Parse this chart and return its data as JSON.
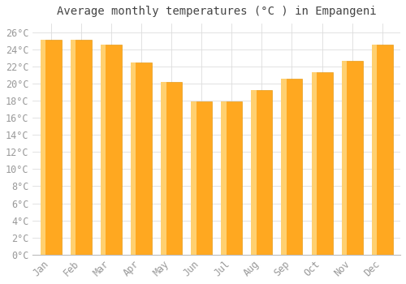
{
  "title": "Average monthly temperatures (°C ) in Empangeni",
  "months": [
    "Jan",
    "Feb",
    "Mar",
    "Apr",
    "May",
    "Jun",
    "Jul",
    "Aug",
    "Sep",
    "Oct",
    "Nov",
    "Dec"
  ],
  "temperatures": [
    25.1,
    25.1,
    24.5,
    22.5,
    20.2,
    17.9,
    17.9,
    19.2,
    20.6,
    21.3,
    22.6,
    24.5
  ],
  "bar_color_main": "#FFA820",
  "bar_color_left": "#FFD070",
  "bar_edge_color": "#E09000",
  "background_color": "#FFFFFF",
  "grid_color": "#DDDDDD",
  "text_color": "#999999",
  "ylim": [
    0,
    27
  ],
  "ytick_step": 2,
  "title_fontsize": 10,
  "tick_fontsize": 8.5
}
